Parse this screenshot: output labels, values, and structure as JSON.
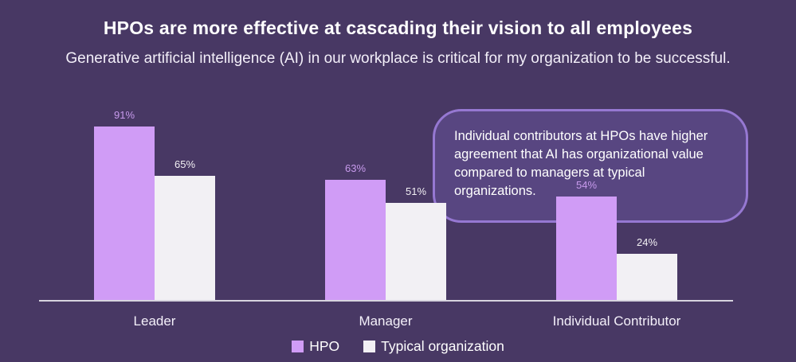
{
  "page": {
    "title": "HPOs are more effective at cascading their vision to all employees",
    "subtitle": "Generative artificial intelligence (AI) in our workplace is critical for my organization to be successful."
  },
  "callout": {
    "text": "Individual contributors at HPOs have higher agreement that AI has organizational value compared to managers at typical organizations."
  },
  "colors": {
    "background": "#483864",
    "hpo_bar": "#d09cf6",
    "typical_bar": "#f2f0f4",
    "hpo_value_label": "#c79aec",
    "typical_value_label": "#f2f0f4",
    "callout_fill": "#584681",
    "callout_border": "#9678d2",
    "axis_line": "#d7d4de",
    "text": "#ffffff"
  },
  "chart_data": {
    "type": "bar",
    "title": "HPOs are more effective at cascading their vision to all employees",
    "subtitle": "Generative artificial intelligence (AI) in our workplace is critical for my organization to be successful.",
    "categories": [
      "Leader",
      "Manager",
      "Individual Contributor"
    ],
    "series": [
      {
        "name": "HPO",
        "values": [
          91,
          63,
          54
        ],
        "color": "#d09cf6",
        "label_color": "#c79aec"
      },
      {
        "name": "Typical organization",
        "values": [
          65,
          51,
          24
        ],
        "color": "#f2f0f4",
        "label_color": "#f2f0f4"
      }
    ],
    "value_suffix": "%",
    "xlabel": "",
    "ylabel": "",
    "ylim": [
      0,
      100
    ],
    "grid": false,
    "legend_position": "bottom",
    "annotation": "Individual contributors at HPOs have higher agreement that AI has organizational value compared to managers at typical organizations."
  }
}
